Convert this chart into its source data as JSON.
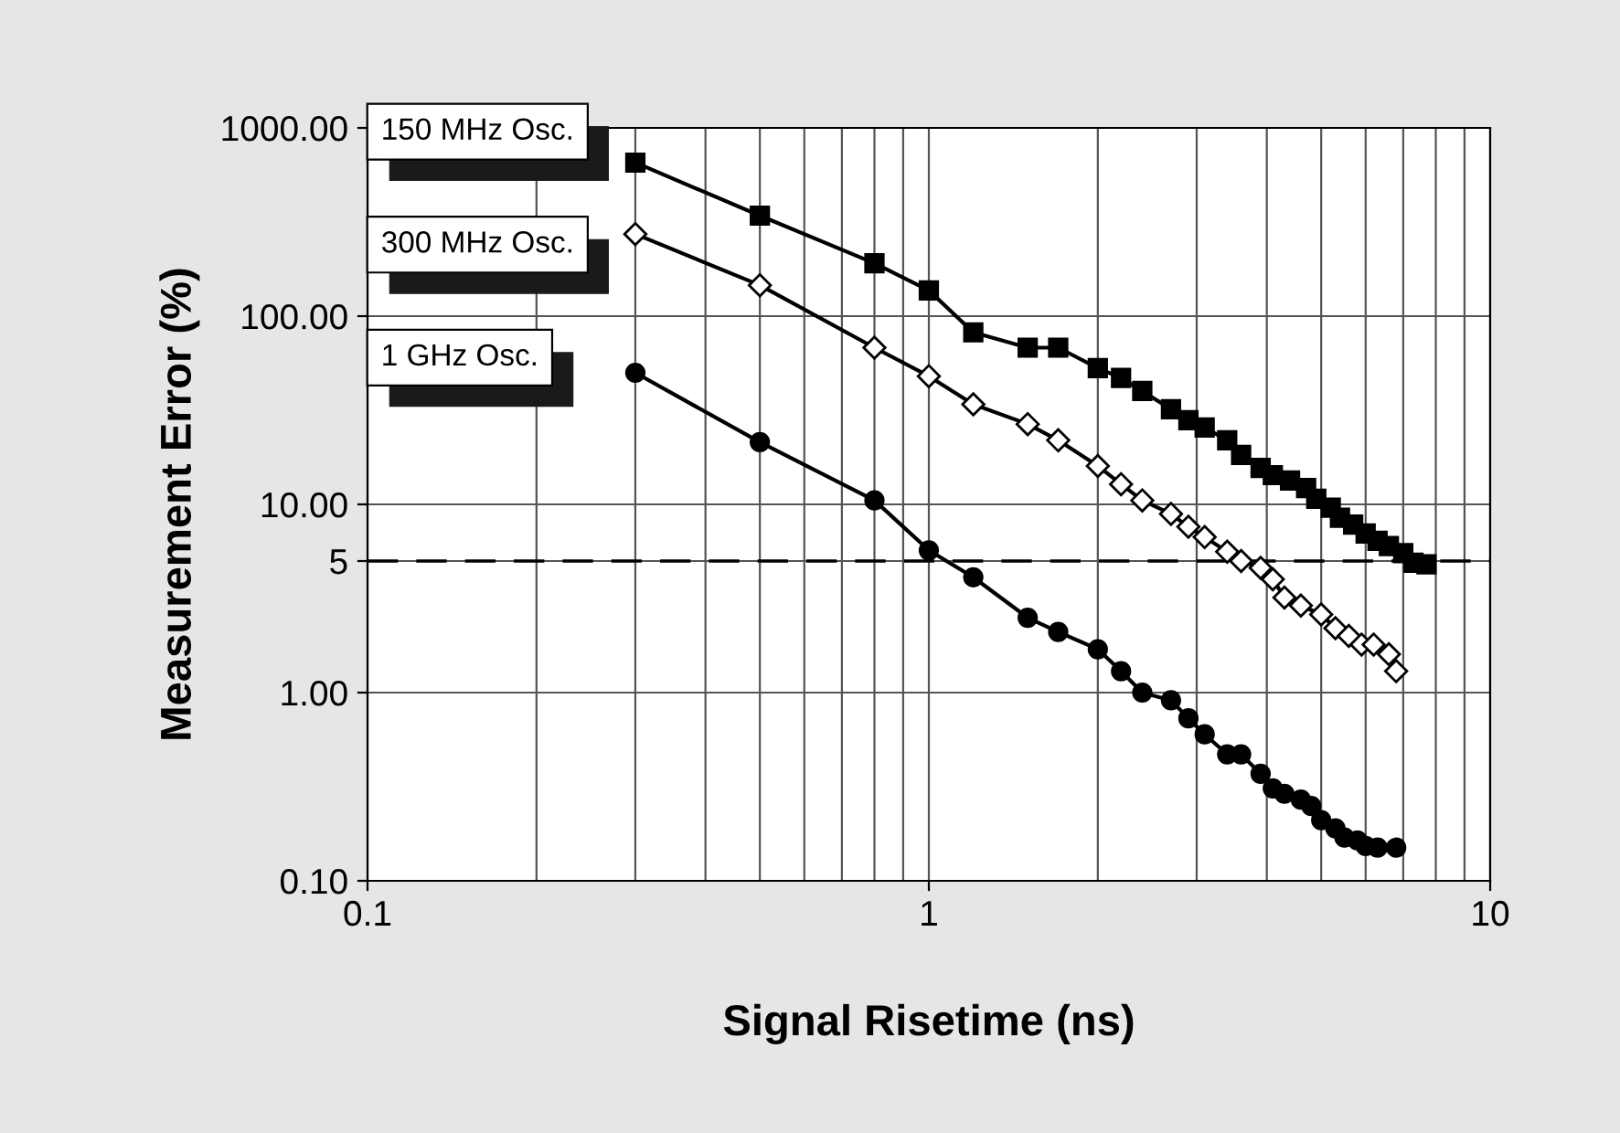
{
  "chart_data": {
    "type": "line",
    "xlabel": "Signal Risetime (ns)",
    "ylabel": "Measurement Error (%)",
    "log": "xy",
    "xlim": [
      0.1,
      10
    ],
    "xticks": [
      0.1,
      1,
      10
    ],
    "ylim": [
      0.1,
      1000
    ],
    "yticks": [
      {
        "value": 0.1,
        "label": "0.10"
      },
      {
        "value": 1,
        "label": "1.00"
      },
      {
        "value": 5,
        "label": "5"
      },
      {
        "value": 10,
        "label": "10.00"
      },
      {
        "value": 100,
        "label": "100.00"
      },
      {
        "value": 1000,
        "label": "1000.00"
      }
    ],
    "grid": true,
    "legend": "top left",
    "ref_lines": [
      {
        "axis": "y",
        "value": 5,
        "line_style": "dashed",
        "color": "#000000"
      }
    ],
    "series": [
      {
        "name": "150 MHz Osc.",
        "color": "#000000",
        "marker": "square",
        "x": [
          0.3,
          0.5,
          0.8,
          1.0,
          1.2,
          1.5,
          1.7,
          2.0,
          2.2,
          2.4,
          2.7,
          2.9,
          3.1,
          3.4,
          3.6,
          3.9,
          4.1,
          4.4,
          4.7,
          4.9,
          5.2,
          5.4,
          5.7,
          6.0,
          6.3,
          6.6,
          7.0,
          7.3,
          7.7
        ],
        "values": [
          654,
          342,
          191,
          137,
          82,
          68,
          68,
          53,
          47,
          40,
          32,
          28,
          25.6,
          21.9,
          18.3,
          15.6,
          14.3,
          13.4,
          12.2,
          10.7,
          9.6,
          8.5,
          7.8,
          7.0,
          6.4,
          6.0,
          5.5,
          4.9,
          4.8
        ]
      },
      {
        "name": "300 MHz Osc.",
        "color": "#000000",
        "marker": "diamond",
        "x": [
          0.3,
          0.5,
          0.8,
          1.0,
          1.2,
          1.5,
          1.7,
          2.0,
          2.2,
          2.4,
          2.7,
          2.9,
          3.1,
          3.4,
          3.6,
          3.9,
          4.1,
          4.3,
          4.6,
          5.0,
          5.3,
          5.6,
          5.9,
          6.2,
          6.6,
          6.8
        ],
        "values": [
          273,
          146,
          68,
          48,
          34,
          26.7,
          21.9,
          16,
          12.8,
          10.5,
          8.9,
          7.6,
          6.7,
          5.6,
          5.0,
          4.6,
          4.0,
          3.2,
          2.9,
          2.6,
          2.2,
          2.0,
          1.8,
          1.8,
          1.6,
          1.3
        ]
      },
      {
        "name": "1 GHz Osc.",
        "color": "#000000",
        "marker": "circle",
        "x": [
          0.3,
          0.5,
          0.8,
          1.0,
          1.2,
          1.5,
          1.7,
          2.0,
          2.2,
          2.4,
          2.7,
          2.9,
          3.1,
          3.4,
          3.6,
          3.9,
          4.1,
          4.3,
          4.6,
          4.8,
          5.0,
          5.3,
          5.5,
          5.8,
          6.0,
          6.3,
          6.8
        ],
        "values": [
          50,
          21.4,
          10.5,
          5.7,
          4.1,
          2.5,
          2.1,
          1.7,
          1.3,
          1.0,
          0.91,
          0.73,
          0.6,
          0.47,
          0.47,
          0.37,
          0.31,
          0.29,
          0.27,
          0.25,
          0.21,
          0.19,
          0.17,
          0.164,
          0.153,
          0.15,
          0.15
        ]
      }
    ]
  }
}
